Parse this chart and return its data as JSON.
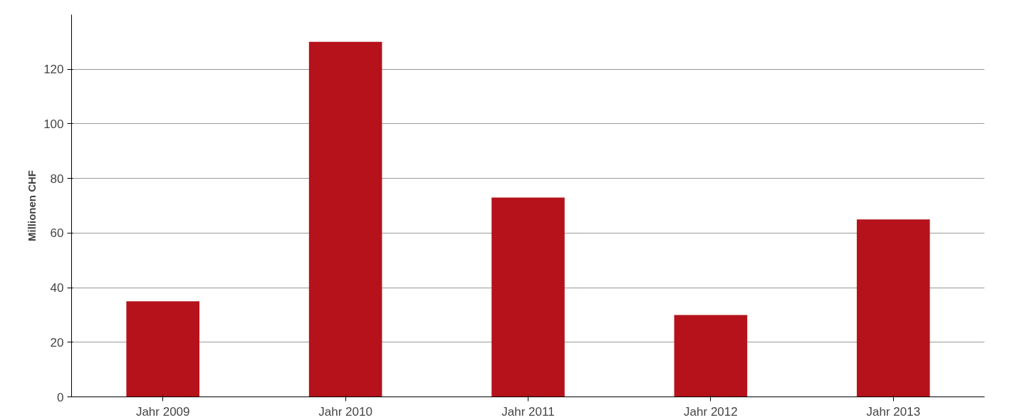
{
  "chart_data": {
    "type": "bar",
    "ylabel": "Millionen CHF",
    "categories": [
      "Jahr 2009",
      "Jahr 2010",
      "Jahr 2011",
      "Jahr 2012",
      "Jahr 2013"
    ],
    "values": [
      35,
      130,
      73,
      30,
      65
    ],
    "color": "#b5121b",
    "ylim": [
      0,
      140
    ],
    "yticks": [
      0,
      20,
      40,
      60,
      80,
      100,
      120
    ],
    "grid": "y"
  }
}
